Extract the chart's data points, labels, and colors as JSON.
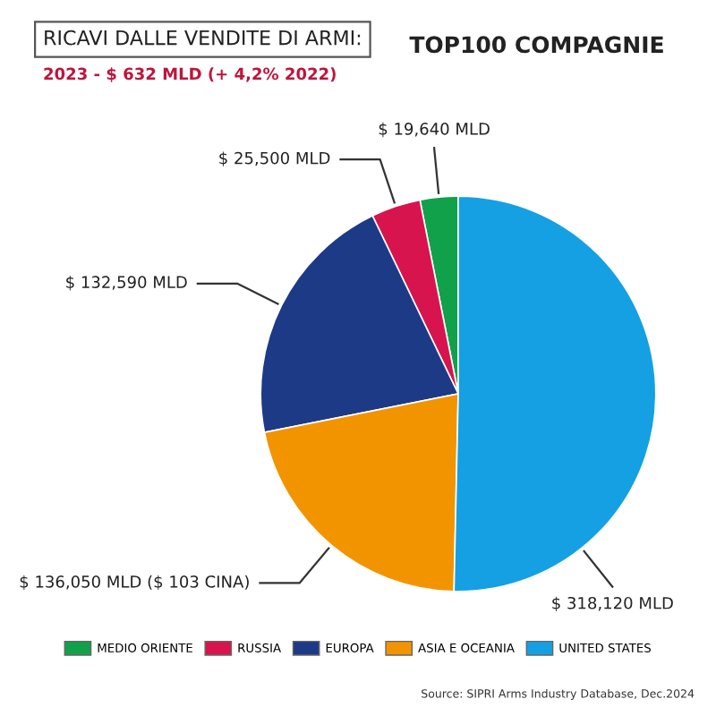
{
  "chart_data": {
    "type": "pie",
    "title": "RICAVI DALLE VENDITE DI ARMI:",
    "subtitle": "2023 - $ 632 MLD (+ 4,2% 2022)",
    "annotations": [
      "TOP100 COMPAGNIE",
      "Source: SIPRI Arms Industry Database, Dec.2024"
    ],
    "categories": [
      "MEDIO ORIENTE",
      "RUSSIA",
      "EUROPA",
      "ASIA E OCEANIA",
      "UNITED STATES"
    ],
    "values": [
      19640,
      25500,
      132590,
      136050,
      318120
    ],
    "colors": [
      "#12a14b",
      "#d8144f",
      "#1c3a86",
      "#f29400",
      "#14a0e3"
    ],
    "value_labels": [
      "$ 19,640 MLD",
      "$ 25,500 MLD",
      "$ 132,590 MLD",
      "$ 136,050 MLD ($ 103 CINA)",
      "$ 318,120 MLD"
    ],
    "legend": "bottom"
  }
}
